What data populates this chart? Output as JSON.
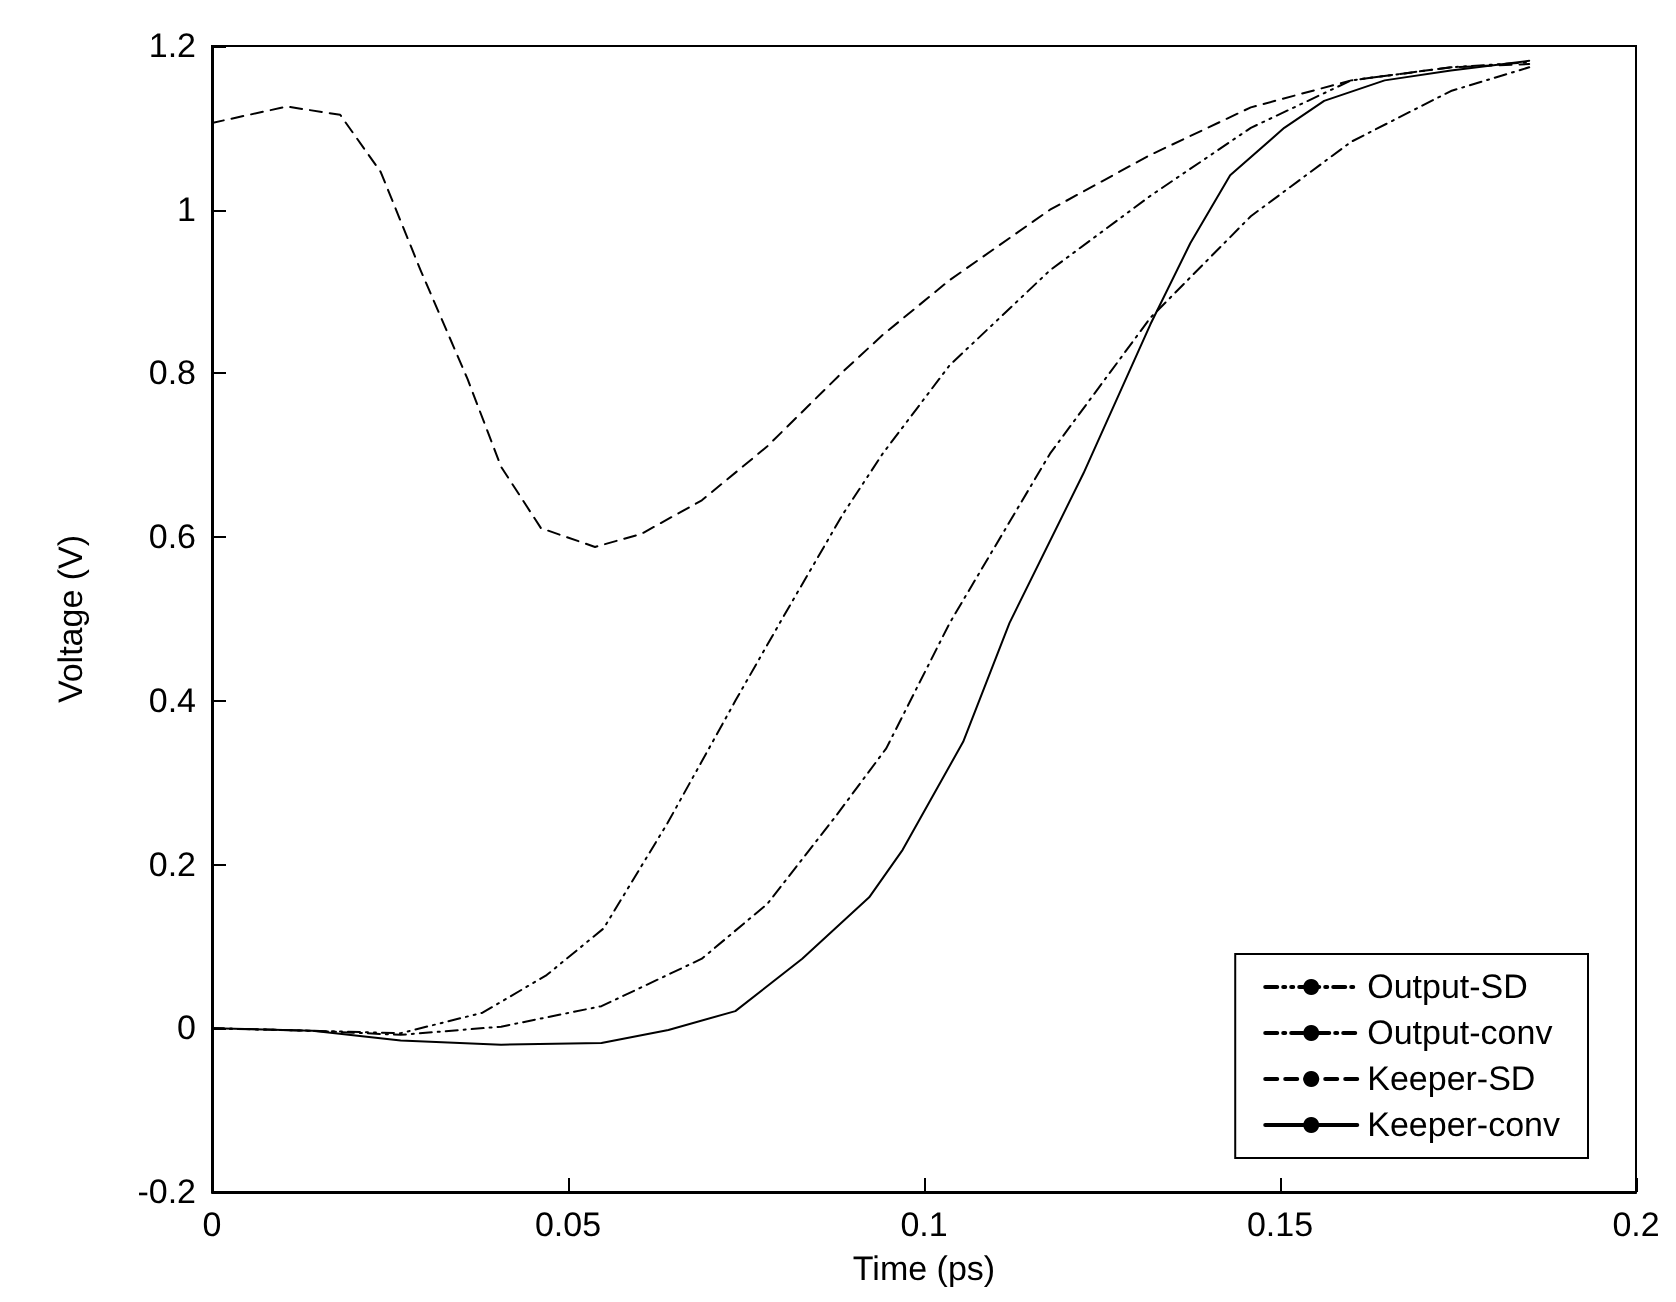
{
  "chart_data": {
    "type": "line",
    "xlabel": "Time (ps)",
    "ylabel": "Voltage (V)",
    "xlim": [
      0,
      0.2
    ],
    "xticks": [
      0,
      0.05,
      0.1,
      0.15,
      0.2
    ],
    "ylim": [
      -0.2,
      1.2
    ],
    "yticks": [
      -0.2,
      0,
      0.2,
      0.4,
      0.6,
      0.8,
      1,
      1.2
    ],
    "grid": false,
    "legend": "bottom right",
    "marker": "none",
    "series": [
      {
        "name": "Output-SD",
        "color": "#000000",
        "line_style": "dashdotdot",
        "x": [
          0,
          0.014,
          0.0265,
          0.038,
          0.047,
          0.055,
          0.064,
          0.0735,
          0.08,
          0.0886,
          0.0942,
          0.1036,
          0.1177,
          0.1318,
          0.1459,
          0.16,
          0.174,
          0.185
        ],
        "values": [
          0,
          -0.003,
          -0.006,
          0.019,
          0.065,
          0.122,
          0.251,
          0.4,
          0.499,
          0.628,
          0.702,
          0.81,
          0.926,
          1.017,
          1.1,
          1.158,
          1.174,
          1.18
        ]
      },
      {
        "name": "Output-conv",
        "color": "#000000",
        "line_style": "dashdot",
        "x": [
          0,
          0.014,
          0.0265,
          0.0406,
          0.0547,
          0.0688,
          0.078,
          0.0876,
          0.0947,
          0.1036,
          0.1177,
          0.1318,
          0.1459,
          0.16,
          0.174,
          0.185
        ],
        "values": [
          0,
          -0.003,
          -0.008,
          0.002,
          0.027,
          0.085,
          0.152,
          0.259,
          0.342,
          0.495,
          0.702,
          0.868,
          0.992,
          1.083,
          1.145,
          1.174
        ]
      },
      {
        "name": "Keeper-SD",
        "color": "#000000",
        "line_style": "dashed",
        "x": [
          0,
          0.0105,
          0.018,
          0.0237,
          0.0293,
          0.0359,
          0.0406,
          0.0462,
          0.0538,
          0.0603,
          0.0688,
          0.078,
          0.0886,
          0.0942,
          0.1036,
          0.1177,
          0.1318,
          0.1459,
          0.16,
          0.174,
          0.185
        ],
        "values": [
          1.106,
          1.126,
          1.116,
          1.046,
          0.926,
          0.793,
          0.686,
          0.611,
          0.588,
          0.604,
          0.645,
          0.711,
          0.802,
          0.847,
          0.914,
          1.0,
          1.067,
          1.125,
          1.158,
          1.174,
          1.178
        ]
      },
      {
        "name": "Keeper-conv",
        "color": "#000000",
        "line_style": "solid",
        "x": [
          0,
          0.0141,
          0.0265,
          0.0406,
          0.0547,
          0.0641,
          0.0735,
          0.0829,
          0.0923,
          0.097,
          0.1055,
          0.112,
          0.1224,
          0.1318,
          0.1374,
          0.143,
          0.1506,
          0.1562,
          0.1647,
          0.174,
          0.185
        ],
        "values": [
          0,
          -0.003,
          -0.015,
          -0.02,
          -0.018,
          -0.002,
          0.021,
          0.085,
          0.16,
          0.218,
          0.35,
          0.495,
          0.678,
          0.86,
          0.959,
          1.042,
          1.1,
          1.133,
          1.158,
          1.17,
          1.182
        ]
      }
    ]
  }
}
